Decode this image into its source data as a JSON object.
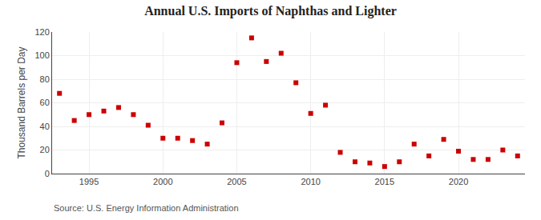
{
  "chart_data": {
    "type": "scatter",
    "title": "Annual U.S. Imports of Naphthas and Lighter",
    "ylabel": "Thousand Barrels per Day",
    "annotations": [
      "Source: U.S. Energy Information Administration"
    ],
    "x": [
      1993,
      1994,
      1995,
      1996,
      1997,
      1998,
      1999,
      2000,
      2001,
      2002,
      2003,
      2004,
      2005,
      2006,
      2007,
      2008,
      2009,
      2010,
      2011,
      2012,
      2013,
      2014,
      2015,
      2016,
      2017,
      2018,
      2019,
      2020,
      2021,
      2022,
      2023,
      2024
    ],
    "values": [
      68,
      45,
      50,
      53,
      56,
      50,
      41,
      30,
      30,
      28,
      25,
      43,
      94,
      115,
      95,
      102,
      77,
      51,
      58,
      18,
      10,
      9,
      6,
      10,
      25,
      15,
      29,
      19,
      12,
      12,
      20,
      15
    ],
    "color": "#cc0000",
    "marker": "square",
    "xlim": [
      1992.5,
      2024.5
    ],
    "ylim": [
      0,
      120
    ],
    "xticks": [
      1995,
      2000,
      2005,
      2010,
      2015,
      2020
    ],
    "yticks": [
      0,
      20,
      40,
      60,
      80,
      100,
      120
    ],
    "grid": true
  }
}
